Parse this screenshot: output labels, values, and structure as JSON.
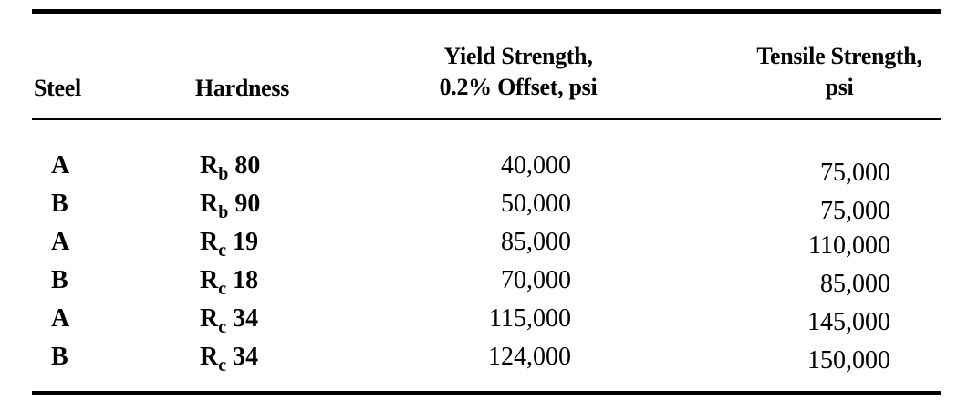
{
  "table": {
    "headers": {
      "steel": "Steel",
      "hardness": "Hardness",
      "yield_line1": "Yield Strength,",
      "yield_line2": "0.2% Offset, psi",
      "tensile_line1": "Tensile Strength,",
      "tensile_line2": "psi"
    },
    "rows": [
      {
        "steel": "A",
        "hardness_scale": "R",
        "hardness_sub": "b",
        "hardness_value": "80",
        "yield": "40,000",
        "tensile": "75,000"
      },
      {
        "steel": "B",
        "hardness_scale": "R",
        "hardness_sub": "b",
        "hardness_value": "90",
        "yield": "50,000",
        "tensile": "75,000"
      },
      {
        "steel": "A",
        "hardness_scale": "R",
        "hardness_sub": "c",
        "hardness_value": "19",
        "yield": "85,000",
        "tensile": "110,000"
      },
      {
        "steel": "B",
        "hardness_scale": "R",
        "hardness_sub": "c",
        "hardness_value": "18",
        "yield": "70,000",
        "tensile": "85,000"
      },
      {
        "steel": "A",
        "hardness_scale": "R",
        "hardness_sub": "c",
        "hardness_value": "34",
        "yield": "115,000",
        "tensile": "145,000"
      },
      {
        "steel": "B",
        "hardness_scale": "R",
        "hardness_sub": "c",
        "hardness_value": "34",
        "yield": "124,000",
        "tensile": "150,000"
      }
    ]
  }
}
